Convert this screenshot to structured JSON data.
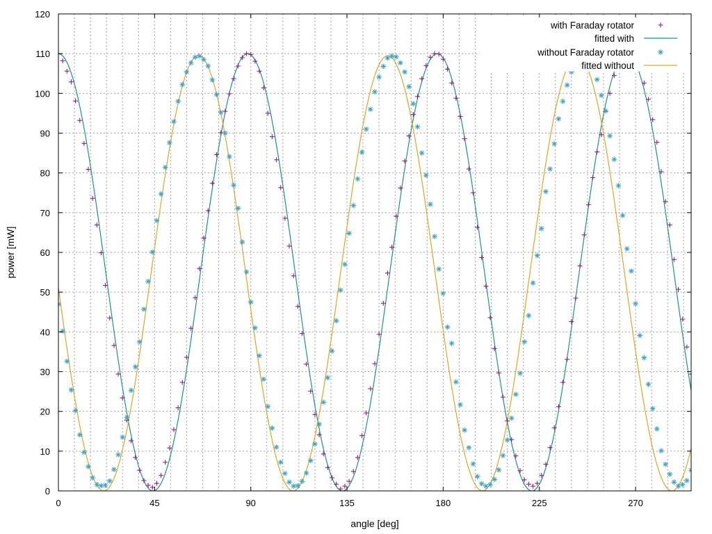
{
  "chart_data": {
    "type": "scatter",
    "title": "",
    "xlabel": "angle [deg]",
    "ylabel": "power [mW]",
    "xlim": [
      0,
      296
    ],
    "ylim": [
      0,
      120
    ],
    "x_ticks": [
      0,
      45,
      90,
      135,
      180,
      225,
      270
    ],
    "x_tick_labels": [
      "0",
      "45",
      "90",
      "135",
      "180",
      "225",
      "270"
    ],
    "y_ticks": [
      0,
      10,
      20,
      30,
      40,
      50,
      60,
      70,
      80,
      90,
      100,
      110,
      120
    ],
    "y_tick_labels": [
      "0",
      "10",
      "20",
      "30",
      "40",
      "50",
      "60",
      "70",
      "80",
      "90",
      "100",
      "110",
      "120"
    ],
    "grid": true,
    "legend_position": "top-right",
    "series": [
      {
        "name": "with Faraday rotator",
        "kind": "points",
        "marker": "plus",
        "color": "#8b1a8b",
        "points": [
          [
            0,
            110.0
          ],
          [
            2,
            108.2
          ],
          [
            4,
            105.6
          ],
          [
            6,
            102.9
          ],
          [
            8,
            98.1
          ],
          [
            10,
            93.2
          ],
          [
            12,
            87.4
          ],
          [
            14,
            80.9
          ],
          [
            16,
            73.6
          ],
          [
            18,
            66.9
          ],
          [
            20,
            59.9
          ],
          [
            22,
            51.7
          ],
          [
            24,
            43.5
          ],
          [
            26,
            36.6
          ],
          [
            28,
            29.4
          ],
          [
            30,
            23.4
          ],
          [
            32,
            17.8
          ],
          [
            34,
            12.6
          ],
          [
            36,
            8.4
          ],
          [
            38,
            5.2
          ],
          [
            40,
            2.6
          ],
          [
            42,
            1.4
          ],
          [
            44,
            0.9
          ],
          [
            46,
            1.9
          ],
          [
            48,
            3.9
          ],
          [
            50,
            7.2
          ],
          [
            52,
            10.8
          ],
          [
            54,
            15.4
          ],
          [
            56,
            20.9
          ],
          [
            58,
            27.3
          ],
          [
            60,
            33.6
          ],
          [
            62,
            40.9
          ],
          [
            64,
            48.6
          ],
          [
            66,
            55.9
          ],
          [
            68,
            63.6
          ],
          [
            70,
            70.5
          ],
          [
            72,
            77.4
          ],
          [
            74,
            84.6
          ],
          [
            76,
            90.1
          ],
          [
            78,
            95.5
          ],
          [
            80,
            99.9
          ],
          [
            82,
            103.7
          ],
          [
            84,
            106.9
          ],
          [
            86,
            109.0
          ],
          [
            88,
            110.0
          ],
          [
            90,
            109.8
          ],
          [
            92,
            108.1
          ],
          [
            94,
            105.6
          ],
          [
            96,
            101.4
          ],
          [
            98,
            95.0
          ],
          [
            100,
            89.1
          ],
          [
            102,
            83.3
          ],
          [
            104,
            76.3
          ],
          [
            106,
            68.6
          ],
          [
            108,
            61.6
          ],
          [
            110,
            54.1
          ],
          [
            112,
            46.4
          ],
          [
            114,
            39.6
          ],
          [
            116,
            31.9
          ],
          [
            118,
            25.1
          ],
          [
            120,
            19.2
          ],
          [
            122,
            14.1
          ],
          [
            124,
            9.3
          ],
          [
            126,
            5.9
          ],
          [
            128,
            3.3
          ],
          [
            130,
            1.7
          ],
          [
            132,
            0.5
          ],
          [
            134,
            1.2
          ],
          [
            136,
            2.4
          ],
          [
            138,
            4.9
          ],
          [
            140,
            8.4
          ],
          [
            142,
            13.9
          ],
          [
            144,
            19.6
          ],
          [
            146,
            25.7
          ],
          [
            148,
            32.0
          ],
          [
            150,
            39.4
          ],
          [
            152,
            47.2
          ],
          [
            154,
            54.8
          ],
          [
            156,
            61.3
          ],
          [
            158,
            69.1
          ],
          [
            160,
            76.2
          ],
          [
            162,
            83.0
          ],
          [
            164,
            89.3
          ],
          [
            166,
            94.7
          ],
          [
            168,
            99.2
          ],
          [
            170,
            103.7
          ],
          [
            172,
            107.0
          ],
          [
            174,
            109.1
          ],
          [
            176,
            110.0
          ],
          [
            178,
            109.9
          ],
          [
            180,
            108.6
          ],
          [
            182,
            106.1
          ],
          [
            184,
            102.6
          ],
          [
            186,
            98.8
          ],
          [
            188,
            94.2
          ],
          [
            190,
            88.6
          ],
          [
            192,
            81.0
          ],
          [
            194,
            75.0
          ],
          [
            196,
            66.3
          ],
          [
            198,
            58.7
          ],
          [
            200,
            51.5
          ],
          [
            202,
            43.6
          ],
          [
            204,
            35.8
          ],
          [
            206,
            29.7
          ],
          [
            208,
            23.6
          ],
          [
            210,
            17.6
          ],
          [
            212,
            12.9
          ],
          [
            214,
            8.8
          ],
          [
            216,
            5.1
          ],
          [
            218,
            2.8
          ],
          [
            220,
            1.7
          ],
          [
            222,
            1.2
          ],
          [
            224,
            1.9
          ],
          [
            226,
            3.9
          ],
          [
            228,
            6.7
          ],
          [
            230,
            10.9
          ],
          [
            232,
            15.9
          ],
          [
            234,
            21.2
          ],
          [
            236,
            27.3
          ],
          [
            238,
            33.1
          ],
          [
            240,
            42.6
          ],
          [
            242,
            48.5
          ],
          [
            244,
            56.6
          ],
          [
            246,
            64.4
          ],
          [
            248,
            72.0
          ],
          [
            250,
            78.8
          ],
          [
            252,
            85.3
          ],
          [
            254,
            89.6
          ],
          [
            256,
            95.5
          ],
          [
            258,
            100.0
          ],
          [
            260,
            104.5
          ],
          [
            262,
            107.4
          ],
          [
            264,
            109.5
          ],
          [
            266,
            110.0
          ],
          [
            268,
            109.8
          ],
          [
            270,
            108.6
          ],
          [
            272,
            106.0
          ],
          [
            274,
            102.6
          ],
          [
            276,
            98.5
          ],
          [
            278,
            93.4
          ],
          [
            280,
            87.7
          ],
          [
            282,
            80.3
          ],
          [
            284,
            72.8
          ],
          [
            286,
            66.9
          ],
          [
            288,
            58.2
          ],
          [
            290,
            50.7
          ],
          [
            292,
            43.2
          ],
          [
            294,
            36.2
          ],
          [
            296,
            29.4
          ],
          [
            298,
            23.6
          ]
        ]
      },
      {
        "name": "fitted with",
        "kind": "line",
        "color": "#1a9380",
        "amplitude": 110,
        "period_deg": 88.6,
        "phase_deg": 0
      },
      {
        "name": "without Faraday rotator",
        "kind": "points",
        "marker": "asterisk",
        "color": "#3fa4c4",
        "points": [
          [
            0,
            47.0
          ],
          [
            2,
            40.2
          ],
          [
            4,
            32.6
          ],
          [
            6,
            25.4
          ],
          [
            8,
            20.2
          ],
          [
            10,
            14.1
          ],
          [
            12,
            9.7
          ],
          [
            14,
            6.1
          ],
          [
            16,
            3.3
          ],
          [
            18,
            1.6
          ],
          [
            20,
            1.3
          ],
          [
            22,
            1.4
          ],
          [
            24,
            2.5
          ],
          [
            26,
            5.4
          ],
          [
            28,
            9.1
          ],
          [
            30,
            13.5
          ],
          [
            32,
            18.5
          ],
          [
            34,
            25.3
          ],
          [
            36,
            31.2
          ],
          [
            38,
            37.5
          ],
          [
            40,
            45.7
          ],
          [
            42,
            52.7
          ],
          [
            44,
            60.1
          ],
          [
            46,
            68.0
          ],
          [
            48,
            74.7
          ],
          [
            50,
            81.4
          ],
          [
            52,
            87.6
          ],
          [
            54,
            92.9
          ],
          [
            56,
            98.0
          ],
          [
            58,
            102.2
          ],
          [
            60,
            105.4
          ],
          [
            62,
            107.7
          ],
          [
            64,
            109.1
          ],
          [
            66,
            109.4
          ],
          [
            68,
            108.5
          ],
          [
            70,
            106.9
          ],
          [
            72,
            103.4
          ],
          [
            74,
            99.7
          ],
          [
            76,
            95.2
          ],
          [
            78,
            90.0
          ],
          [
            80,
            84.1
          ],
          [
            82,
            76.9
          ],
          [
            84,
            71.1
          ],
          [
            86,
            62.6
          ],
          [
            88,
            55.1
          ],
          [
            90,
            47.5
          ],
          [
            92,
            41.0
          ],
          [
            94,
            34.0
          ],
          [
            96,
            28.1
          ],
          [
            98,
            21.2
          ],
          [
            100,
            15.8
          ],
          [
            102,
            11.0
          ],
          [
            104,
            7.2
          ],
          [
            106,
            4.4
          ],
          [
            108,
            2.2
          ],
          [
            110,
            1.2
          ],
          [
            112,
            1.3
          ],
          [
            114,
            2.4
          ],
          [
            116,
            4.5
          ],
          [
            118,
            7.6
          ],
          [
            120,
            11.8
          ],
          [
            122,
            16.8
          ],
          [
            124,
            22.3
          ],
          [
            126,
            28.5
          ],
          [
            128,
            35.2
          ],
          [
            130,
            42.8
          ],
          [
            132,
            50.5
          ],
          [
            134,
            57.0
          ],
          [
            136,
            64.8
          ],
          [
            138,
            71.8
          ],
          [
            140,
            78.5
          ],
          [
            142,
            85.2
          ],
          [
            144,
            91.0
          ],
          [
            146,
            96.0
          ],
          [
            148,
            100.4
          ],
          [
            150,
            104.1
          ],
          [
            152,
            106.8
          ],
          [
            154,
            108.9
          ],
          [
            156,
            109.4
          ],
          [
            158,
            109.2
          ],
          [
            160,
            107.7
          ],
          [
            162,
            105.4
          ],
          [
            164,
            101.7
          ],
          [
            166,
            97.4
          ],
          [
            168,
            91.6
          ],
          [
            170,
            85.0
          ],
          [
            172,
            79.4
          ],
          [
            174,
            72.1
          ],
          [
            176,
            64.0
          ],
          [
            178,
            55.8
          ],
          [
            180,
            49.7
          ],
          [
            182,
            41.2
          ],
          [
            184,
            37.1
          ],
          [
            186,
            27.4
          ],
          [
            188,
            21.7
          ],
          [
            190,
            15.3
          ],
          [
            192,
            10.9
          ],
          [
            194,
            6.8
          ],
          [
            196,
            3.6
          ],
          [
            198,
            1.8
          ],
          [
            200,
            1.2
          ],
          [
            202,
            1.6
          ],
          [
            204,
            2.9
          ],
          [
            206,
            5.3
          ],
          [
            208,
            8.9
          ],
          [
            210,
            12.8
          ],
          [
            212,
            18.3
          ],
          [
            214,
            24.3
          ],
          [
            216,
            29.6
          ],
          [
            218,
            37.5
          ],
          [
            220,
            44.1
          ],
          [
            222,
            52.3
          ],
          [
            224,
            59.2
          ],
          [
            226,
            66.0
          ],
          [
            228,
            75.3
          ],
          [
            230,
            81.0
          ],
          [
            232,
            87.3
          ],
          [
            234,
            93.6
          ],
          [
            236,
            98.0
          ],
          [
            238,
            102.1
          ],
          [
            240,
            105.4
          ],
          [
            242,
            108.0
          ],
          [
            244,
            109.4
          ],
          [
            246,
            109.6
          ],
          [
            248,
            108.7
          ],
          [
            250,
            106.6
          ],
          [
            252,
            103.5
          ],
          [
            254,
            99.5
          ],
          [
            256,
            95.6
          ],
          [
            258,
            89.3
          ],
          [
            260,
            83.4
          ],
          [
            262,
            76.8
          ],
          [
            264,
            69.3
          ],
          [
            266,
            60.9
          ],
          [
            268,
            55.3
          ],
          [
            270,
            47.1
          ],
          [
            272,
            39.1
          ],
          [
            274,
            33.5
          ],
          [
            276,
            26.8
          ],
          [
            278,
            20.7
          ],
          [
            280,
            15.6
          ],
          [
            282,
            10.1
          ],
          [
            284,
            6.7
          ],
          [
            286,
            4.2
          ],
          [
            288,
            2.2
          ],
          [
            290,
            1.2
          ],
          [
            292,
            1.6
          ],
          [
            294,
            2.6
          ],
          [
            296,
            5.2
          ],
          [
            298,
            8.0
          ],
          [
            300,
            12.8
          ]
        ]
      },
      {
        "name": "fitted without",
        "kind": "line",
        "color": "#daa520",
        "amplitude": 109.5,
        "period_deg": 88.6,
        "phase_deg": 65.5
      }
    ]
  }
}
